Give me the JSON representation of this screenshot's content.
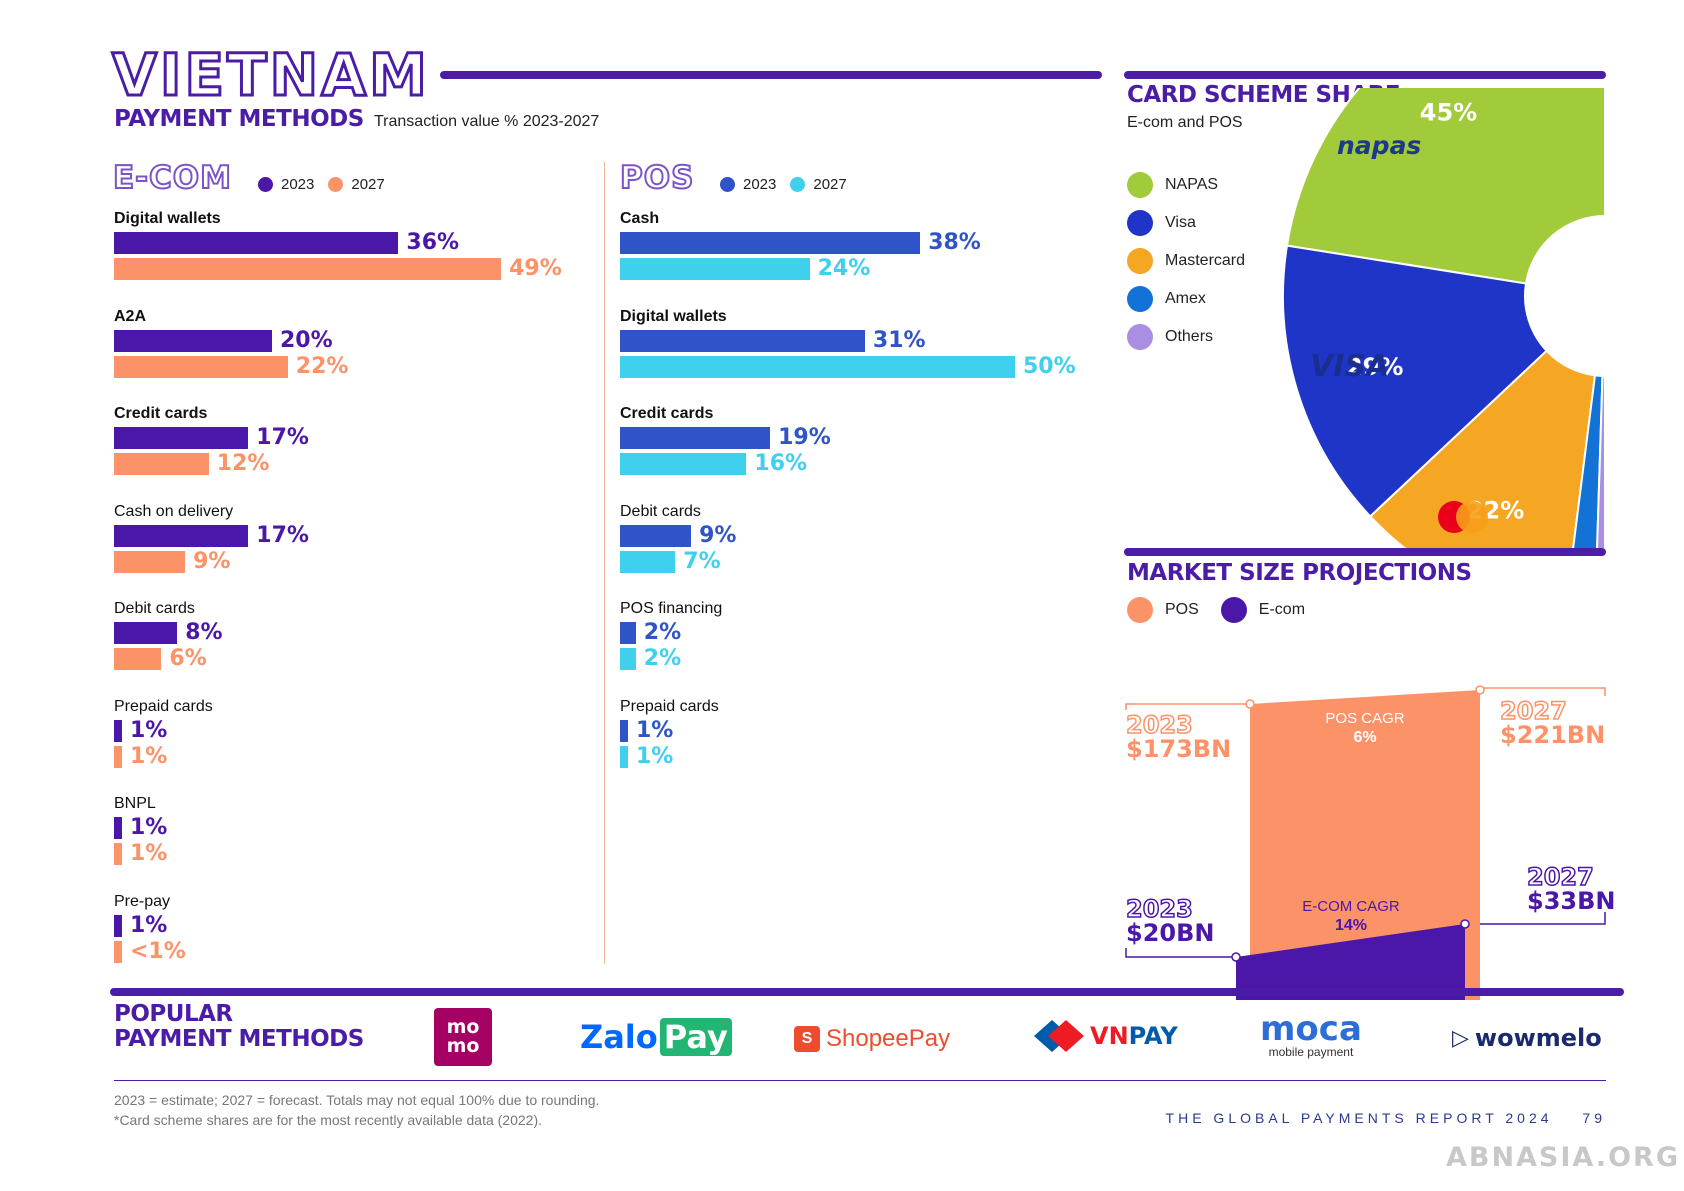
{
  "header": {
    "country": "VIETNAM",
    "subtitle": "PAYMENT METHODS",
    "subtitle_note": "Transaction value % 2023-2027"
  },
  "colors": {
    "brand_purple": "#4b1ca6",
    "ecom_2023": "#4b17a8",
    "ecom_2027": "#fb9268",
    "pos_2023": "#2f54c8",
    "pos_2027": "#3fd0ee",
    "napas": "#a1cb3a",
    "visa": "#1f35c8",
    "mastercard": "#f5a623",
    "amex": "#1372d6",
    "others": "#a98ee2"
  },
  "ecom": {
    "title": "E-COM",
    "legend": [
      "2023",
      "2027"
    ]
  },
  "pos": {
    "title": "POS",
    "legend": [
      "2023",
      "2027"
    ]
  },
  "card_scheme": {
    "title": "CARD SCHEME SHARE",
    "subtitle": "E-com and POS",
    "brand_napas": "napas",
    "brand_visa": "VISA"
  },
  "market_size": {
    "title": "MARKET SIZE PROJECTIONS",
    "legend": [
      "POS",
      "E-com"
    ],
    "pos_2023_year": "2023",
    "pos_2023_value": "$173BN",
    "pos_2027_year": "2027",
    "pos_2027_value": "$221BN",
    "pos_cagr_label": "POS CAGR",
    "pos_cagr_value": "6%",
    "ecom_2023_year": "2023",
    "ecom_2023_value": "$20BN",
    "ecom_2027_year": "2027",
    "ecom_2027_value": "$33BN",
    "ecom_cagr_label": "E-COM CAGR",
    "ecom_cagr_value": "14%"
  },
  "popular": {
    "title_line1": "POPULAR",
    "title_line2": "PAYMENT METHODS",
    "logos": {
      "momo_top": "mo",
      "momo_bottom": "mo",
      "zalo": "Zalo",
      "zalo_pay": "Pay",
      "shopee": "ShopeePay",
      "vnpay_vn": "VN",
      "vnpay_pay": "PAY",
      "moca": "moca",
      "moca_sub": "mobile payment",
      "wowmelo": "wowmelo"
    }
  },
  "footer": {
    "note_line1": "2023 = estimate; 2027 = forecast. Totals may not equal 100% due to rounding.",
    "note_line2": "*Card scheme shares are for the most recently available data (2022).",
    "report": "THE GLOBAL PAYMENTS REPORT 2024",
    "page": "79",
    "watermark": "ABNASIA.ORG"
  },
  "chart_data": [
    {
      "type": "bar",
      "title": "E-COM",
      "categories": [
        "Digital wallets",
        "A2A",
        "Credit cards",
        "Cash on delivery",
        "Debit cards",
        "Prepaid cards",
        "BNPL",
        "Pre-pay"
      ],
      "bold_categories": [
        "Digital wallets",
        "A2A",
        "Credit cards"
      ],
      "series": [
        {
          "name": "2023",
          "values": [
            36,
            20,
            17,
            17,
            8,
            1,
            1,
            1
          ],
          "labels": [
            "36%",
            "20%",
            "17%",
            "17%",
            "8%",
            "1%",
            "1%",
            "1%"
          ]
        },
        {
          "name": "2027",
          "values": [
            49,
            22,
            12,
            9,
            6,
            1,
            1,
            0.5
          ],
          "labels": [
            "49%",
            "22%",
            "12%",
            "9%",
            "6%",
            "1%",
            "1%",
            "<1%"
          ]
        }
      ]
    },
    {
      "type": "bar",
      "title": "POS",
      "categories": [
        "Cash",
        "Digital wallets",
        "Credit cards",
        "Debit cards",
        "POS financing",
        "Prepaid cards"
      ],
      "bold_categories": [
        "Cash",
        "Digital wallets",
        "Credit cards"
      ],
      "series": [
        {
          "name": "2023",
          "values": [
            38,
            31,
            19,
            9,
            2,
            1
          ],
          "labels": [
            "38%",
            "31%",
            "19%",
            "9%",
            "2%",
            "1%"
          ]
        },
        {
          "name": "2027",
          "values": [
            24,
            50,
            16,
            7,
            2,
            1
          ],
          "labels": [
            "24%",
            "50%",
            "16%",
            "7%",
            "2%",
            "1%"
          ]
        }
      ]
    },
    {
      "type": "pie",
      "title": "CARD SCHEME SHARE",
      "subtitle": "E-com and POS",
      "categories": [
        "NAPAS",
        "Visa",
        "Mastercard",
        "Amex",
        "Others"
      ],
      "values": [
        45,
        29,
        22,
        3,
        1
      ],
      "labels": [
        "45%",
        "29%",
        "22%",
        "3%",
        "1%"
      ]
    },
    {
      "type": "area",
      "title": "MARKET SIZE PROJECTIONS",
      "x": [
        "2023",
        "2027"
      ],
      "series": [
        {
          "name": "POS",
          "values": [
            173,
            221
          ]
        },
        {
          "name": "E-com",
          "values": [
            20,
            33
          ]
        }
      ],
      "unit": "$BN"
    }
  ]
}
